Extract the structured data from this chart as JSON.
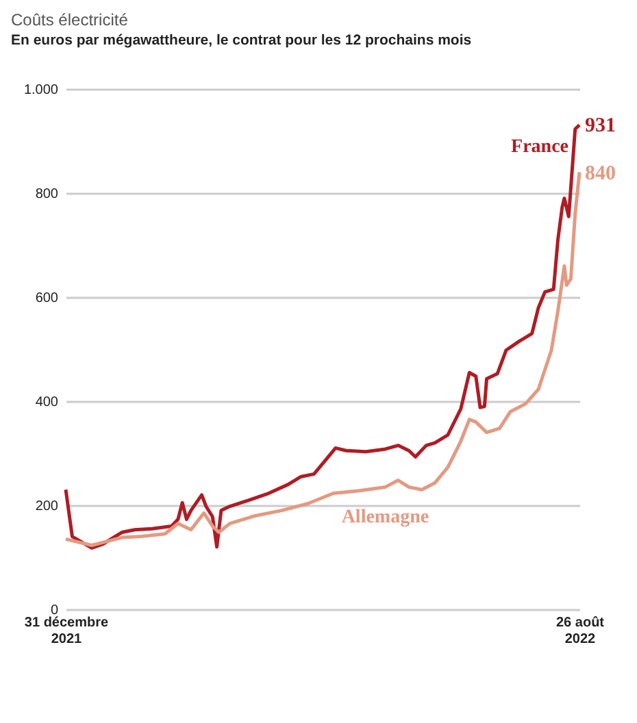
{
  "chart_data": {
    "type": "line",
    "title": "Coûts électricité",
    "subtitle": "En euros par mégawattheure, le contrat pour les 12 prochains mois",
    "x": [
      "2021-12-31",
      "2022-01-03",
      "2022-01-05",
      "2022-01-12",
      "2022-01-17",
      "2022-01-26",
      "2022-02-01",
      "2022-02-09",
      "2022-02-18",
      "2022-02-21",
      "2022-02-23",
      "2022-02-25",
      "2022-02-27",
      "2022-03-04",
      "2022-03-06",
      "2022-03-09",
      "2022-03-11",
      "2022-03-13",
      "2022-03-17",
      "2022-03-26",
      "2022-04-04",
      "2022-04-13",
      "2022-04-19",
      "2022-04-25",
      "2022-05-01",
      "2022-05-05",
      "2022-05-10",
      "2022-05-19",
      "2022-05-28",
      "2022-06-03",
      "2022-06-08",
      "2022-06-11",
      "2022-06-16",
      "2022-06-20",
      "2022-06-26",
      "2022-06-29",
      "2022-07-02",
      "2022-07-06",
      "2022-07-09",
      "2022-07-11",
      "2022-07-13",
      "2022-07-14",
      "2022-07-19",
      "2022-07-23",
      "2022-07-29",
      "2022-08-04",
      "2022-08-07",
      "2022-08-10",
      "2022-08-14",
      "2022-08-16",
      "2022-08-18",
      "2022-08-19",
      "2022-08-21",
      "2022-08-22",
      "2022-08-24",
      "2022-08-26"
    ],
    "series": [
      {
        "name": "France",
        "color": "#b01c24",
        "values": [
          230,
          140,
          135,
          118,
          125,
          148,
          153,
          155,
          160,
          173,
          205,
          173,
          190,
          220,
          198,
          178,
          120,
          190,
          198,
          210,
          223,
          240,
          255,
          260,
          290,
          310,
          305,
          303,
          308,
          315,
          305,
          293,
          315,
          320,
          335,
          360,
          385,
          455,
          448,
          388,
          390,
          443,
          453,
          498,
          515,
          530,
          580,
          610,
          615,
          710,
          773,
          790,
          755,
          810,
          923,
          931
        ],
        "value_labels": [
          null,
          null,
          null,
          null,
          null,
          null,
          null,
          null,
          null,
          null,
          null,
          null,
          null,
          null,
          null,
          null,
          null,
          null,
          null,
          null,
          null,
          null,
          null,
          null,
          null,
          null,
          null,
          null,
          null,
          null,
          null,
          null,
          null,
          null,
          null,
          null,
          null,
          null,
          null,
          null,
          null,
          null,
          null,
          null,
          null,
          null,
          null,
          null,
          null,
          null,
          null,
          null,
          null,
          null,
          null,
          "931"
        ]
      },
      {
        "name": "Allemagne",
        "color": "#e39a82",
        "x": [
          "2021-12-31",
          "2022-01-12",
          "2022-01-26",
          "2022-02-04",
          "2022-02-15",
          "2022-02-21",
          "2022-02-27",
          "2022-03-05",
          "2022-03-09",
          "2022-03-12",
          "2022-03-17",
          "2022-03-29",
          "2022-04-10",
          "2022-04-22",
          "2022-05-04",
          "2022-05-16",
          "2022-05-28",
          "2022-06-03",
          "2022-06-08",
          "2022-06-14",
          "2022-06-20",
          "2022-06-26",
          "2022-07-02",
          "2022-07-06",
          "2022-07-09",
          "2022-07-14",
          "2022-07-20",
          "2022-07-25",
          "2022-08-01",
          "2022-08-07",
          "2022-08-13",
          "2022-08-16",
          "2022-08-19",
          "2022-08-20",
          "2022-08-22",
          "2022-08-24",
          "2022-08-26"
        ],
        "values": [
          135,
          123,
          138,
          140,
          145,
          165,
          153,
          185,
          160,
          148,
          165,
          180,
          190,
          203,
          223,
          228,
          235,
          248,
          235,
          230,
          243,
          273,
          323,
          365,
          360,
          340,
          348,
          380,
          395,
          423,
          498,
          573,
          660,
          623,
          635,
          760,
          840
        ],
        "value_labels": [
          null,
          null,
          null,
          null,
          null,
          null,
          null,
          null,
          null,
          null,
          null,
          null,
          null,
          null,
          null,
          null,
          null,
          null,
          null,
          null,
          null,
          null,
          null,
          null,
          null,
          null,
          null,
          null,
          null,
          null,
          null,
          null,
          null,
          null,
          null,
          null,
          "840"
        ]
      }
    ],
    "xlim": [
      "2021-12-31",
      "2022-08-26"
    ],
    "xticks": [
      {
        "value": "2021-12-31",
        "label": "31 décembre\n2021"
      },
      {
        "value": "2022-08-26",
        "label": "26 août\n2022"
      }
    ],
    "ylim": [
      0,
      1000
    ],
    "yticks": [
      0,
      200,
      400,
      600,
      800,
      {
        "value": 1000,
        "label": "1.000"
      }
    ],
    "grid": "y",
    "legend": false,
    "line_style": "solid"
  }
}
